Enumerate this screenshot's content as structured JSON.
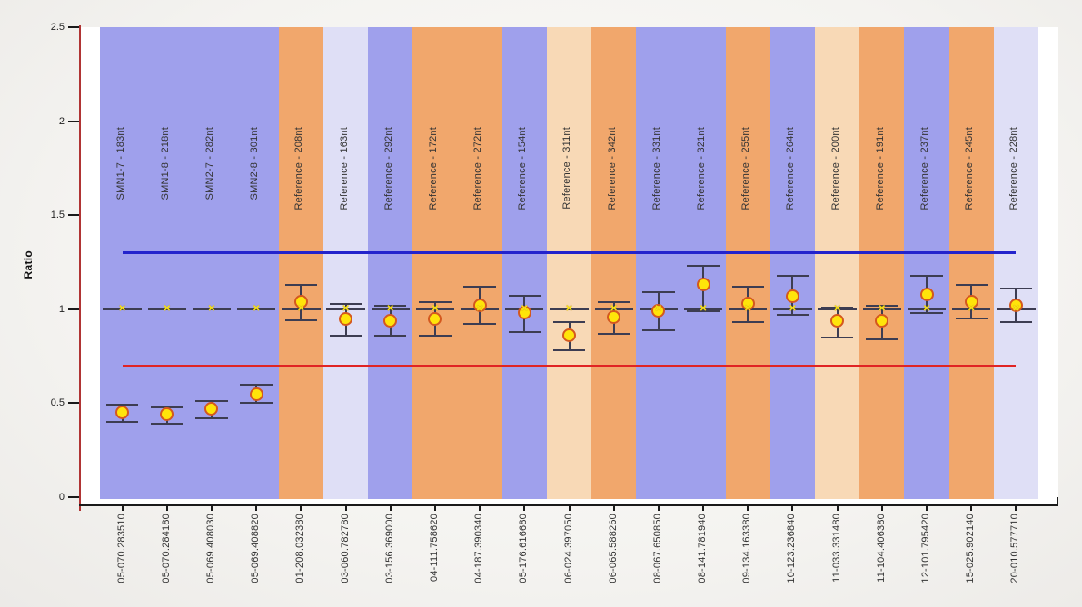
{
  "chart_data": {
    "type": "scatter",
    "title": "",
    "ylabel": "Ratio",
    "ylim": [
      0,
      2.5
    ],
    "ytick_labels": [
      "0",
      "0.5",
      "1",
      "1.5",
      "2",
      "2.5"
    ],
    "ytick_values": [
      0,
      0.5,
      1,
      1.5,
      2,
      2.5
    ],
    "grid": false,
    "legend_position": "none",
    "reference_value": 1.0,
    "upper_threshold": 1.3,
    "lower_threshold": 0.7,
    "band_palette": {
      "blue": "#9fa0ec",
      "orange": "#f1a76c",
      "lavender": "#dfdff6",
      "peach": "#f8d9b6"
    },
    "colors": {
      "point_fill": "#ffe40a",
      "point_stroke": "#d4581e",
      "error_bar": "#3d3d52",
      "ref_marker": "#f8e414",
      "upper_line": "#2323cc",
      "lower_line": "#e02424",
      "y_axis": "#b03434",
      "x_axis": "#1a1a1a",
      "tick": "#1a1a1a"
    },
    "columns": [
      {
        "x_label": "05-070.283510",
        "band_label": "SMN1-7 - 183nt",
        "band_color": "blue",
        "value": 0.45,
        "err_low": 0.4,
        "err_high": 0.49
      },
      {
        "x_label": "05-070.284180",
        "band_label": "SMN1-8 - 218nt",
        "band_color": "blue",
        "value": 0.44,
        "err_low": 0.39,
        "err_high": 0.48
      },
      {
        "x_label": "05-069.408030",
        "band_label": "SMN2-7 - 282nt",
        "band_color": "blue",
        "value": 0.47,
        "err_low": 0.42,
        "err_high": 0.51
      },
      {
        "x_label": "05-069.408820",
        "band_label": "SMN2-8 - 301nt",
        "band_color": "blue",
        "value": 0.55,
        "err_low": 0.5,
        "err_high": 0.6
      },
      {
        "x_label": "01-208.032380",
        "band_label": "Reference - 208nt",
        "band_color": "orange",
        "value": 1.04,
        "err_low": 0.94,
        "err_high": 1.13
      },
      {
        "x_label": "03-060.782780",
        "band_label": "Reference - 163nt",
        "band_color": "lavender",
        "value": 0.95,
        "err_low": 0.86,
        "err_high": 1.03
      },
      {
        "x_label": "03-156.369000",
        "band_label": "Reference - 292nt",
        "band_color": "blue",
        "value": 0.94,
        "err_low": 0.86,
        "err_high": 1.02
      },
      {
        "x_label": "04-111.758620",
        "band_label": "Reference - 172nt",
        "band_color": "orange",
        "value": 0.95,
        "err_low": 0.86,
        "err_high": 1.04
      },
      {
        "x_label": "04-187.390340",
        "band_label": "Reference - 272nt",
        "band_color": "orange",
        "value": 1.02,
        "err_low": 0.92,
        "err_high": 1.12
      },
      {
        "x_label": "05-176.616680",
        "band_label": "Reference - 154nt",
        "band_color": "blue",
        "value": 0.98,
        "err_low": 0.88,
        "err_high": 1.07
      },
      {
        "x_label": "06-024.397050",
        "band_label": "Reference - 311nt",
        "band_color": "peach",
        "value": 0.86,
        "err_low": 0.78,
        "err_high": 0.93
      },
      {
        "x_label": "06-065.588260",
        "band_label": "Reference - 342nt",
        "band_color": "orange",
        "value": 0.96,
        "err_low": 0.87,
        "err_high": 1.04
      },
      {
        "x_label": "08-067.650850",
        "band_label": "Reference - 331nt",
        "band_color": "blue",
        "value": 0.99,
        "err_low": 0.89,
        "err_high": 1.09
      },
      {
        "x_label": "08-141.781940",
        "band_label": "Reference - 321nt",
        "band_color": "blue",
        "value": 1.13,
        "err_low": 0.99,
        "err_high": 1.23
      },
      {
        "x_label": "09-134.163380",
        "band_label": "Reference - 255nt",
        "band_color": "orange",
        "value": 1.03,
        "err_low": 0.93,
        "err_high": 1.12
      },
      {
        "x_label": "10-123.236840",
        "band_label": "Reference - 264nt",
        "band_color": "blue",
        "value": 1.07,
        "err_low": 0.97,
        "err_high": 1.18
      },
      {
        "x_label": "11-033.331480",
        "band_label": "Reference - 200nt",
        "band_color": "peach",
        "value": 0.94,
        "err_low": 0.85,
        "err_high": 1.01
      },
      {
        "x_label": "11-104.406380",
        "band_label": "Reference - 191nt",
        "band_color": "orange",
        "value": 0.94,
        "err_low": 0.84,
        "err_high": 1.02
      },
      {
        "x_label": "12-101.795420",
        "band_label": "Reference - 237nt",
        "band_color": "blue",
        "value": 1.08,
        "err_low": 0.98,
        "err_high": 1.18
      },
      {
        "x_label": "15-025.902140",
        "band_label": "Reference - 245nt",
        "band_color": "orange",
        "value": 1.04,
        "err_low": 0.95,
        "err_high": 1.13
      },
      {
        "x_label": "20-010.577710",
        "band_label": "Reference - 228nt",
        "band_color": "lavender",
        "value": 1.02,
        "err_low": 0.93,
        "err_high": 1.11
      }
    ]
  }
}
